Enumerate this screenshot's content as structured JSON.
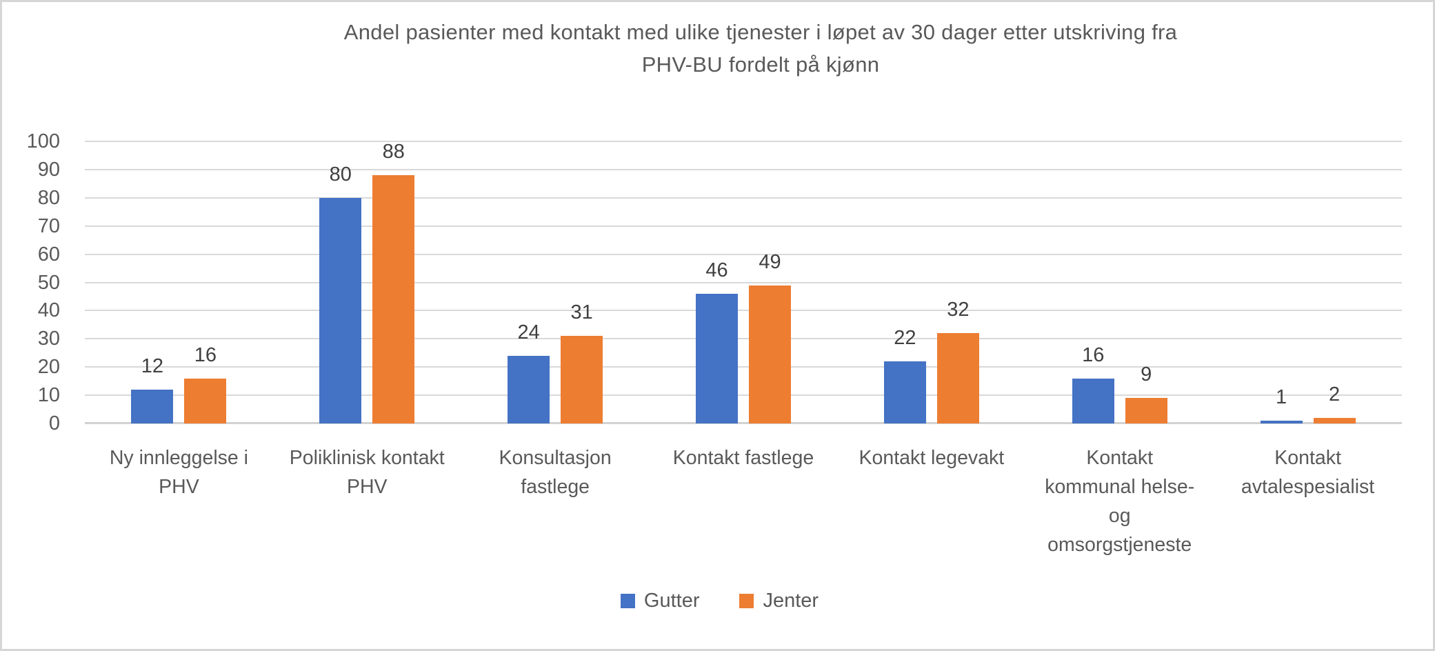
{
  "colors": {
    "series_gutter": "#4472C4",
    "series_jenter": "#ED7D31",
    "title_text": "#595959",
    "tick_text": "#595959",
    "data_label_text": "#404040",
    "gridline": "#D9D9D9",
    "axis_line": "#D2D2D2",
    "frame_border": "#D6D6D6",
    "background": "#FFFFFF"
  },
  "chart_data": {
    "type": "bar",
    "title": "Andel pasienter med kontakt med ulike tjenester i løpet av 30 dager etter utskriving fra PHV-BU fordelt på kjønn",
    "title_lines": [
      "Andel pasienter med kontakt med ulike tjenester i løpet av 30 dager etter utskriving fra",
      "PHV-BU fordelt på kjønn"
    ],
    "categories": [
      "Ny innleggelse i PHV",
      "Poliklinisk kontakt PHV",
      "Konsultasjon fastlege",
      "Kontakt fastlege",
      "Kontakt legevakt",
      "Kontakt kommunal helse- og omsorgstjeneste",
      "Kontakt avtalespesialist"
    ],
    "category_tick_labels": [
      "Ny innleggelse i\nPHV",
      "Poliklinisk kontakt\nPHV",
      "Konsultasjon\nfastlege",
      "Kontakt fastlege",
      "Kontakt legevakt",
      "Kontakt\nkommunal helse-\nog\nomsorgstjeneste",
      "Kontakt\navtalespesialist"
    ],
    "series": [
      {
        "name": "Gutter",
        "color": "#4472C4",
        "values": [
          12,
          80,
          24,
          46,
          22,
          16,
          1
        ]
      },
      {
        "name": "Jenter",
        "color": "#ED7D31",
        "values": [
          16,
          88,
          31,
          49,
          32,
          9,
          2
        ]
      }
    ],
    "data_labels_shown": true,
    "xlabel": "",
    "ylabel": "",
    "ylim": [
      0,
      100
    ],
    "yticks": [
      0,
      10,
      20,
      30,
      40,
      50,
      60,
      70,
      80,
      90,
      100
    ],
    "grid": "horizontal",
    "legend_position": "bottom"
  }
}
